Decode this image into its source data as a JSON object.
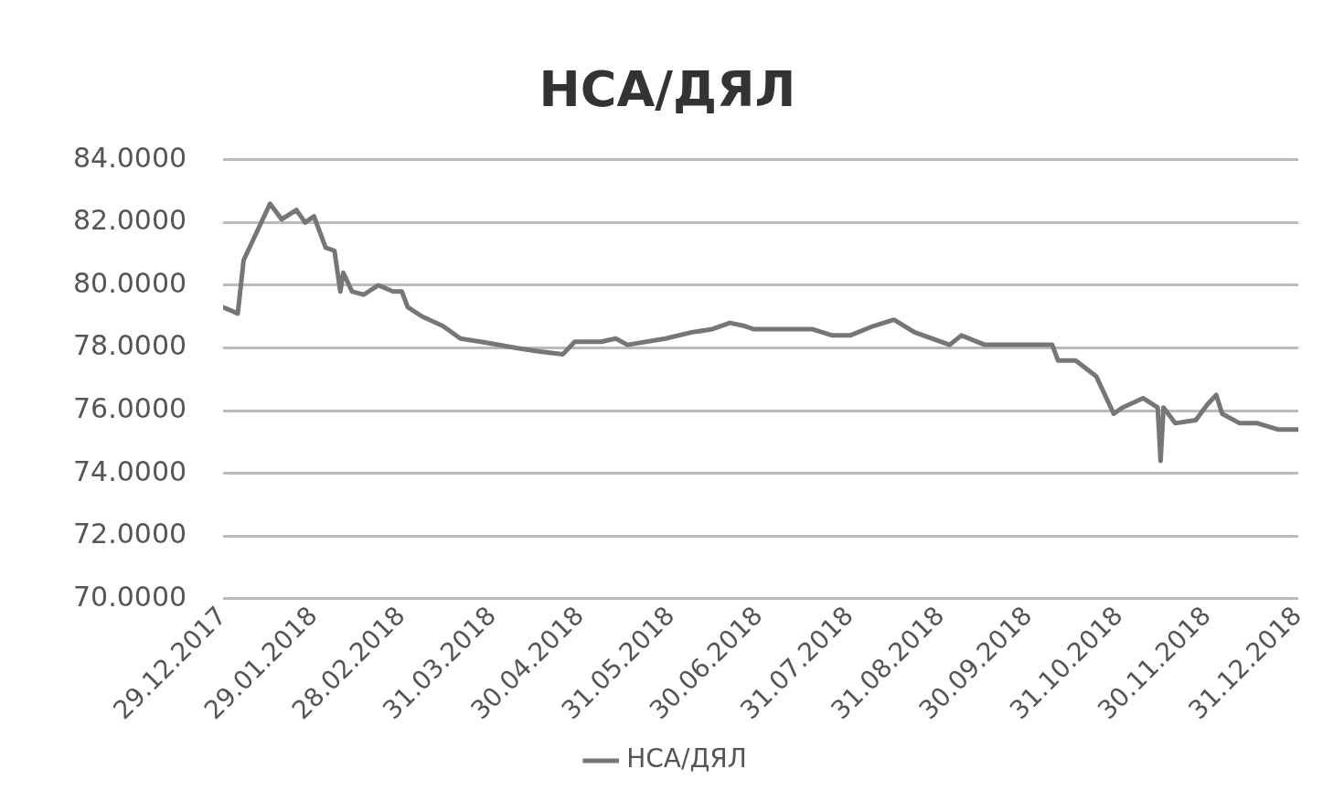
{
  "chart_data": {
    "type": "line",
    "title": "НСА/ДЯЛ",
    "x": [
      "2017-12-29",
      "2018-01-03",
      "2018-01-05",
      "2018-01-08",
      "2018-01-14",
      "2018-01-18",
      "2018-01-23",
      "2018-01-26",
      "2018-01-29",
      "2018-02-02",
      "2018-02-05",
      "2018-02-07",
      "2018-02-08",
      "2018-02-11",
      "2018-02-15",
      "2018-02-20",
      "2018-02-25",
      "2018-02-28",
      "2018-03-02",
      "2018-03-07",
      "2018-03-14",
      "2018-03-20",
      "2018-03-27",
      "2018-04-08",
      "2018-04-15",
      "2018-04-24",
      "2018-04-28",
      "2018-05-07",
      "2018-05-12",
      "2018-05-16",
      "2018-05-29",
      "2018-06-07",
      "2018-06-14",
      "2018-06-20",
      "2018-06-25",
      "2018-06-28",
      "2018-07-11",
      "2018-07-18",
      "2018-07-25",
      "2018-07-31",
      "2018-08-08",
      "2018-08-15",
      "2018-08-22",
      "2018-09-03",
      "2018-09-07",
      "2018-09-15",
      "2018-09-26",
      "2018-10-08",
      "2018-10-10",
      "2018-10-16",
      "2018-10-23",
      "2018-10-29",
      "2018-11-01",
      "2018-11-08",
      "2018-11-13",
      "2018-11-14",
      "2018-11-15",
      "2018-11-19",
      "2018-11-26",
      "2018-11-30",
      "2018-12-03",
      "2018-12-05",
      "2018-12-11",
      "2018-12-17",
      "2018-12-24",
      "2018-12-31"
    ],
    "series": [
      {
        "name": "НСА/ДЯЛ",
        "color": "#767676",
        "values": [
          79.3,
          79.1,
          80.8,
          81.4,
          82.6,
          82.1,
          82.4,
          82.0,
          82.2,
          81.2,
          81.1,
          79.8,
          80.4,
          79.8,
          79.7,
          80.0,
          79.8,
          79.8,
          79.3,
          79.0,
          78.7,
          78.3,
          78.2,
          78.0,
          77.9,
          77.8,
          78.2,
          78.2,
          78.3,
          78.1,
          78.3,
          78.5,
          78.6,
          78.8,
          78.7,
          78.6,
          78.6,
          78.6,
          78.4,
          78.4,
          78.7,
          78.9,
          78.5,
          78.1,
          78.4,
          78.1,
          78.1,
          78.1,
          77.6,
          77.6,
          77.1,
          75.9,
          76.1,
          76.4,
          76.1,
          74.4,
          76.1,
          75.6,
          75.7,
          76.2,
          76.5,
          75.9,
          75.6,
          75.6,
          75.4,
          75.4
        ]
      }
    ],
    "xlim": [
      "2017-12-29",
      "2018-12-31"
    ],
    "xticks": [
      {
        "value": "2017-12-29",
        "label": "29.12.2017"
      },
      {
        "value": "2018-01-29",
        "label": "29.01.2018"
      },
      {
        "value": "2018-02-28",
        "label": "28.02.2018"
      },
      {
        "value": "2018-03-31",
        "label": "31.03.2018"
      },
      {
        "value": "2018-04-30",
        "label": "30.04.2018"
      },
      {
        "value": "2018-05-31",
        "label": "31.05.2018"
      },
      {
        "value": "2018-06-30",
        "label": "30.06.2018"
      },
      {
        "value": "2018-07-31",
        "label": "31.07.2018"
      },
      {
        "value": "2018-08-31",
        "label": "31.08.2018"
      },
      {
        "value": "2018-09-30",
        "label": "30.09.2018"
      },
      {
        "value": "2018-10-31",
        "label": "31.10.2018"
      },
      {
        "value": "2018-11-30",
        "label": "30.11.2018"
      },
      {
        "value": "2018-12-31",
        "label": "31.12.2018"
      }
    ],
    "ylim": [
      70,
      84
    ],
    "yticks": [
      {
        "value": 70,
        "label": "70.0000"
      },
      {
        "value": 72,
        "label": "72.0000"
      },
      {
        "value": 74,
        "label": "74.0000"
      },
      {
        "value": 76,
        "label": "76.0000"
      },
      {
        "value": 78,
        "label": "78.0000"
      },
      {
        "value": 80,
        "label": "80.0000"
      },
      {
        "value": 82,
        "label": "82.0000"
      },
      {
        "value": 84,
        "label": "84.0000"
      }
    ],
    "grid": "y",
    "legend": "bottom",
    "marker": "none",
    "line_style": "solid"
  }
}
